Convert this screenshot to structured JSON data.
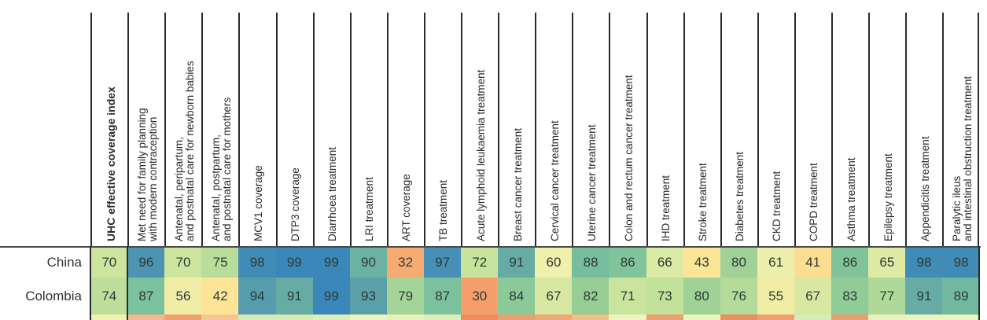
{
  "chart_data": {
    "type": "heatmap",
    "title": "",
    "columns": [
      "UHC effective coverage index",
      "Met need for family planning\nwith modern contraception",
      "Antenatal, peripartum,\nand postnatal care for newborn babies",
      "Antenatal, postpartum,\nand postnatal care for mothers",
      "MCV1 coverage",
      "DTP3 coverage",
      "Diarrhoea treatment",
      "LRI treatment",
      "ART coverage",
      "TB treatment",
      "Acute lymphoid leukaemia treatment",
      "Breast cancer treatment",
      "Cervical cancer treatment",
      "Uterine cancer treatment",
      "Colon and rectum cancer treatment",
      "IHD treatment",
      "Stroke treatment",
      "Diabetes treatment",
      "CKD treatment",
      "COPD treatment",
      "Asthma treatment",
      "Epilepsy treatment",
      "Appendicitis treatment",
      "Paralytic ileus\nand intestinal obstruction treatment"
    ],
    "rows": [
      {
        "name": "China",
        "values": [
          70,
          96,
          70,
          75,
          98,
          99,
          99,
          90,
          32,
          97,
          72,
          91,
          60,
          88,
          86,
          66,
          43,
          80,
          61,
          41,
          86,
          65,
          98,
          98
        ]
      },
      {
        "name": "Colombia",
        "values": [
          74,
          87,
          56,
          42,
          94,
          91,
          99,
          93,
          79,
          87,
          30,
          84,
          67,
          82,
          71,
          73,
          80,
          76,
          55,
          67,
          83,
          77,
          91,
          89
        ]
      }
    ],
    "partial_next_row_colors": [
      "#f2f2b0",
      "#f4b890",
      "#f0a070",
      "#f4c890",
      "#d6ecb4",
      "#d6ecb4",
      "#dcefb8",
      "#eef4c0",
      "#e8f2bc",
      "#dcefb8",
      "#ee8c60",
      "#e8a070",
      "#f0a878",
      "#f4c088",
      "#eef4c0",
      "#e8a070",
      "#eef4c0",
      "#e89060",
      "#f0a070",
      "#d8ecb8",
      "#e8a070",
      "#e8f2bc",
      "#eef4c0",
      "#eef4c0"
    ],
    "color_scale": {
      "low": "#f59d6b",
      "mid_low": "#fde896",
      "mid": "#c6e29e",
      "mid_high": "#7fc49c",
      "high": "#3e8dba"
    },
    "xlabel": "",
    "ylabel": "",
    "legend": "none",
    "grid": false
  }
}
